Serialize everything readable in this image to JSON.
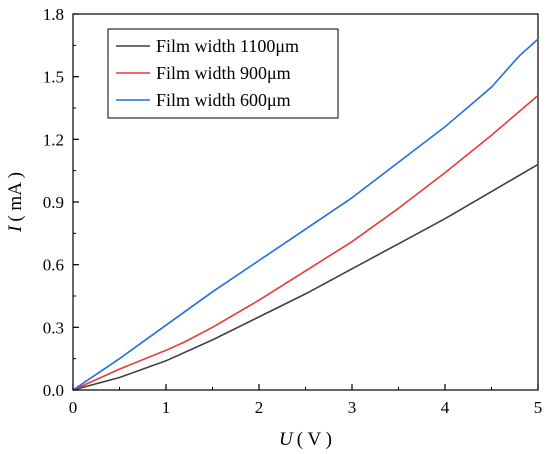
{
  "chart_data": {
    "type": "line",
    "x_label": {
      "var": "U",
      "unit": "( V )"
    },
    "y_label": {
      "var": "I",
      "unit": "( mA )"
    },
    "xlim": [
      0,
      5
    ],
    "ylim": [
      0,
      1.8
    ],
    "x_ticks": [
      "0",
      "1",
      "2",
      "3",
      "4",
      "5"
    ],
    "y_ticks": [
      "0.0",
      "0.3",
      "0.6",
      "0.9",
      "1.2",
      "1.5",
      "1.8"
    ],
    "grid": false,
    "legend_position": "top-left",
    "series": [
      {
        "name": "Film width 1100μm",
        "color": "#404040",
        "x": [
          0,
          0.5,
          1,
          1.5,
          2,
          2.5,
          3,
          3.5,
          4,
          4.5,
          5
        ],
        "y": [
          0,
          0.06,
          0.14,
          0.24,
          0.35,
          0.46,
          0.58,
          0.7,
          0.82,
          0.95,
          1.08
        ]
      },
      {
        "name": "Film width 900μm",
        "color": "#e8393a",
        "x": [
          0,
          0.5,
          1,
          1.2,
          1.5,
          2,
          2.5,
          3,
          3.5,
          4,
          4.5,
          5
        ],
        "y": [
          0,
          0.1,
          0.19,
          0.23,
          0.3,
          0.43,
          0.57,
          0.71,
          0.87,
          1.04,
          1.22,
          1.41
        ]
      },
      {
        "name": "Film width 600μm",
        "color": "#1f6fdc",
        "x": [
          0,
          0.5,
          1,
          1.5,
          2,
          2.5,
          3,
          3.5,
          4,
          4.5,
          4.8,
          5
        ],
        "y": [
          0,
          0.15,
          0.31,
          0.47,
          0.62,
          0.77,
          0.92,
          1.09,
          1.26,
          1.45,
          1.6,
          1.68
        ]
      }
    ]
  }
}
